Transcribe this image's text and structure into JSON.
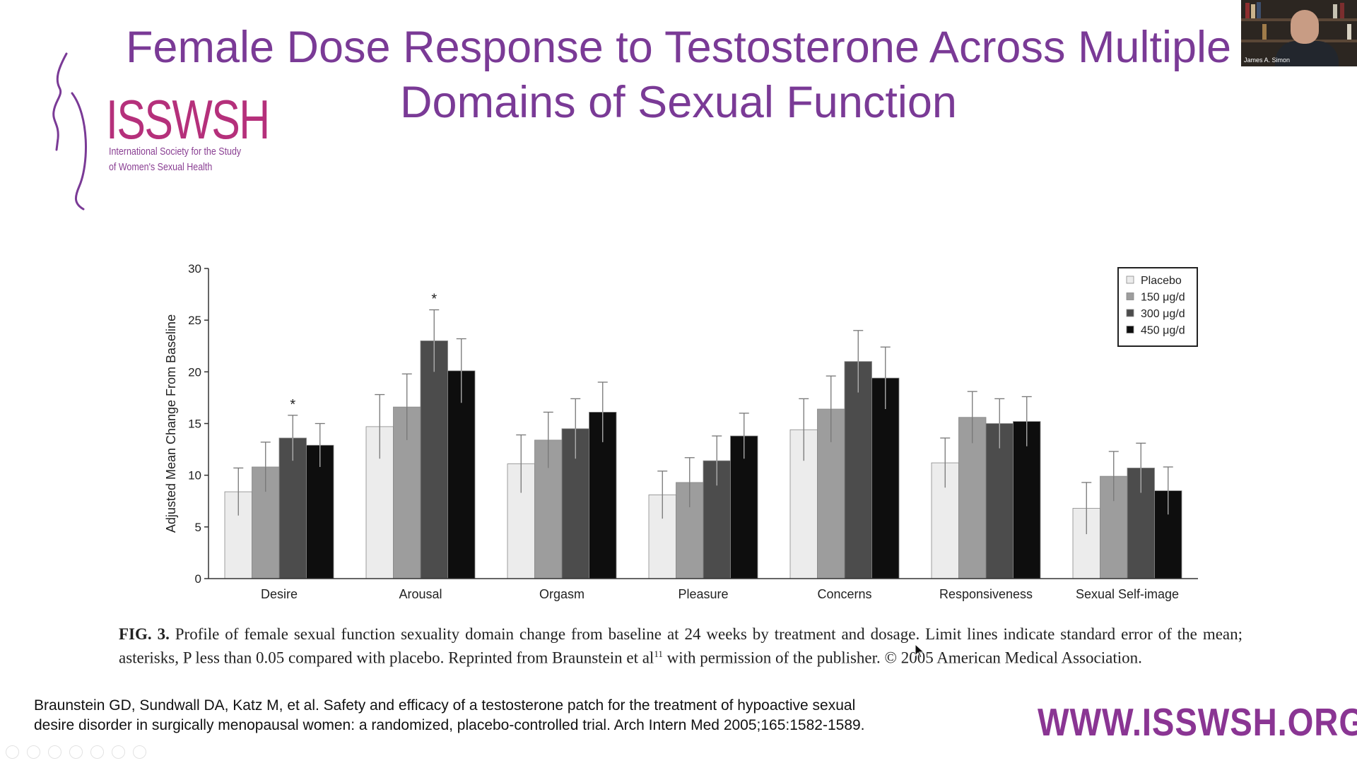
{
  "slide": {
    "title_line1": "Female Dose Response to Testosterone Across Multiple",
    "title_line2": "Domains of Sexual Function"
  },
  "logo": {
    "name": "ISSWSH",
    "subtitle_line1": "International Society for the Study",
    "subtitle_line2": "of Women's Sexual Health",
    "color": "#b5307b"
  },
  "webcam": {
    "name": "James A. Simon"
  },
  "chart_data": {
    "type": "bar",
    "ylabel": "Adjusted Mean Change From Baseline",
    "xlabel": "",
    "ylim": [
      0,
      30
    ],
    "yticks": [
      0,
      5,
      10,
      15,
      20,
      25,
      30
    ],
    "categories": [
      "Desire",
      "Arousal",
      "Orgasm",
      "Pleasure",
      "Concerns",
      "Responsiveness",
      "Sexual Self-image"
    ],
    "series": [
      {
        "name": "Placebo",
        "color": "#ececec",
        "values": [
          8.4,
          14.7,
          11.1,
          8.1,
          14.4,
          11.2,
          6.8
        ],
        "errors": [
          2.3,
          3.1,
          2.8,
          2.3,
          3.0,
          2.4,
          2.5
        ]
      },
      {
        "name": "150 μg/d",
        "color": "#9d9d9d",
        "values": [
          10.8,
          16.6,
          13.4,
          9.3,
          16.4,
          15.6,
          9.9
        ],
        "errors": [
          2.4,
          3.2,
          2.7,
          2.4,
          3.2,
          2.5,
          2.4
        ]
      },
      {
        "name": "300 μg/d",
        "color": "#4c4c4c",
        "values": [
          13.6,
          23.0,
          14.5,
          11.4,
          21.0,
          15.0,
          10.7
        ],
        "errors": [
          2.2,
          3.0,
          2.9,
          2.4,
          3.0,
          2.4,
          2.4
        ]
      },
      {
        "name": "450 μg/d",
        "color": "#0e0e0e",
        "values": [
          12.9,
          20.1,
          16.1,
          13.8,
          19.4,
          15.2,
          8.5
        ],
        "errors": [
          2.1,
          3.1,
          2.9,
          2.2,
          3.0,
          2.4,
          2.3
        ]
      }
    ],
    "significance": [
      {
        "category": "Desire",
        "series": "300 μg/d",
        "label": "*"
      },
      {
        "category": "Arousal",
        "series": "300 μg/d",
        "label": "*"
      }
    ],
    "legend_position": "top-right"
  },
  "caption": {
    "fig_label": "FIG. 3.",
    "text": "Profile of female sexual function sexuality domain change from baseline at 24 weeks by treatment and dosage. Limit lines indicate standard error of the mean; asterisks, P less than 0.05 compared with placebo. Reprinted from Braunstein et al",
    "superscript": "11",
    "text_end": " with permission of the publisher. © 2005 American Medical Association."
  },
  "citation": {
    "line1": "Braunstein GD, Sundwall DA, Katz M, et al. Safety and efficacy of a testosterone patch for the treatment of hypoactive sexual",
    "line2": "desire disorder in surgically menopausal women: a randomized, placebo-controlled trial. Arch Intern Med 2005;165:1582-1589."
  },
  "footer": {
    "url": "WWW.ISSWSH.ORG"
  },
  "colors": {
    "title": "#7a3a96",
    "brand_purple": "#8a3593"
  }
}
